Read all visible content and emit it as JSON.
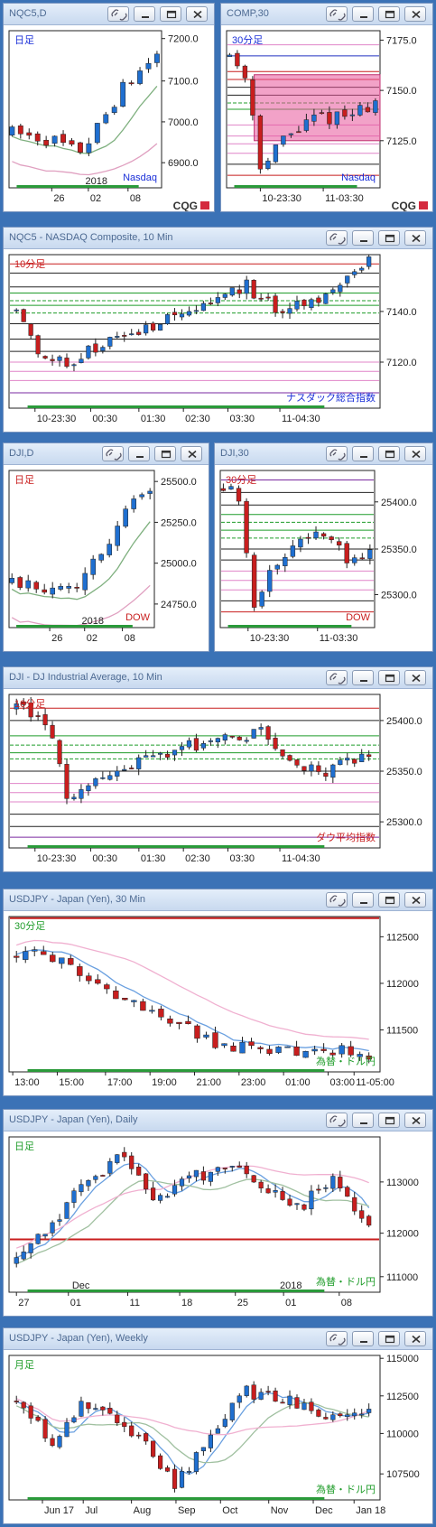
{
  "colors": {
    "up": "#1f6fd0",
    "down": "#c81e1e",
    "frame": "#3b72b6",
    "brand_red": "#d42a3e"
  },
  "brand": "CQG",
  "windows": [
    {
      "id": "nqc5-daily",
      "title": "NQC5,D",
      "period": "日足",
      "name": "Nasdaq",
      "year": "2018",
      "ticks": [
        "7200.0",
        "7100.0",
        "7000.0",
        "6900.0"
      ],
      "xlabels": [
        "26",
        "02",
        "08"
      ]
    },
    {
      "id": "comp-30",
      "title": "COMP,30",
      "period": "30分足",
      "name": "Nasdaq",
      "ticks": [
        "7175.0",
        "7150.0",
        "7125.0"
      ],
      "xlabels": [
        "10-23:30",
        "11-03:30"
      ]
    },
    {
      "id": "nqc5-10min",
      "title": "NQC5 - NASDAQ Composite, 10 Min",
      "period": "10分足",
      "name": "ナスダック総合指数",
      "ticks": [
        "7140.0",
        "7120.0"
      ],
      "xlabels": [
        "10-23:30",
        "00:30",
        "01:30",
        "02:30",
        "03:30",
        "11-04:30"
      ]
    },
    {
      "id": "dji-daily",
      "title": "DJI,D",
      "period": "日足",
      "name": "DOW",
      "year": "2018",
      "ticks": [
        "25500.0",
        "25250.0",
        "25000.0",
        "24750.0"
      ],
      "xlabels": [
        "26",
        "02",
        "08"
      ]
    },
    {
      "id": "dji-30",
      "title": "DJI,30",
      "period": "30分足",
      "name": "DOW",
      "ticks": [
        "25400.0",
        "25350.0",
        "25300.0"
      ],
      "xlabels": [
        "10-23:30",
        "11-03:30"
      ]
    },
    {
      "id": "dji-10min",
      "title": "DJI - DJ Industrial Average, 10 Min",
      "period": "10分足",
      "name": "ダウ平均指数",
      "ticks": [
        "25400.0",
        "25350.0",
        "25300.0"
      ],
      "xlabels": [
        "10-23:30",
        "00:30",
        "01:30",
        "02:30",
        "03:30",
        "11-04:30"
      ]
    },
    {
      "id": "usdjpy-30",
      "title": "USDJPY - Japan (Yen), 30 Min",
      "period": "30分足",
      "name": "為替・ドル円",
      "ticks": [
        "112500",
        "112000",
        "111500"
      ],
      "xlabels": [
        "13:00",
        "15:00",
        "17:00",
        "19:00",
        "21:00",
        "23:00",
        "01:00",
        "03:00",
        "11-05:00"
      ]
    },
    {
      "id": "usdjpy-daily",
      "title": "USDJPY - Japan (Yen), Daily",
      "period": "日足",
      "name": "為替・ドル円",
      "year": "2018",
      "month": "Dec",
      "ticks": [
        "113000",
        "112000",
        "111000"
      ],
      "xlabels": [
        "27",
        "01",
        "11",
        "18",
        "25",
        "01",
        "08"
      ]
    },
    {
      "id": "usdjpy-weekly",
      "title": "USDJPY - Japan (Yen), Weekly",
      "period": "月足",
      "name": "為替・ドル円",
      "ticks": [
        "115000",
        "112500",
        "110000",
        "107500"
      ],
      "xlabels": [
        "Jun 17",
        "Jul",
        "Aug",
        "Sep",
        "Oct",
        "Nov",
        "Dec",
        "Jan 18"
      ]
    }
  ]
}
